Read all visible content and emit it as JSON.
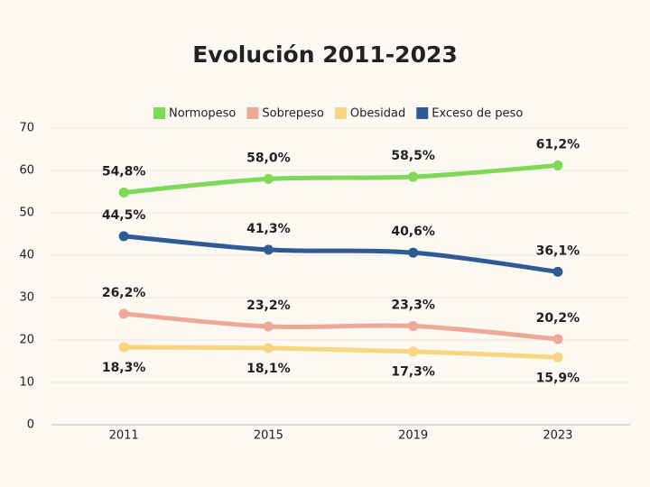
{
  "chart_data": {
    "type": "line",
    "title": "Evolución 2011-2023",
    "categories": [
      "2011",
      "2015",
      "2019",
      "2023"
    ],
    "series": [
      {
        "name": "Normopeso",
        "color": "#7ed957",
        "values": [
          54.8,
          58.0,
          58.5,
          61.2
        ],
        "value_labels": [
          "54,8%",
          "58,0%",
          "58,5%",
          "61,2%"
        ]
      },
      {
        "name": "Sobrepeso",
        "color": "#eea898",
        "values": [
          26.2,
          23.2,
          23.3,
          20.2
        ],
        "value_labels": [
          "26,2%",
          "23,2%",
          "23,3%",
          "20,2%"
        ]
      },
      {
        "name": "Obesidad",
        "color": "#f8d67f",
        "values": [
          18.3,
          18.1,
          17.3,
          15.9
        ],
        "value_labels": [
          "18,3%",
          "18,1%",
          "17,3%",
          "15,9%"
        ]
      },
      {
        "name": "Exceso de peso",
        "color": "#2e5b96",
        "values": [
          44.5,
          41.3,
          40.6,
          36.1
        ],
        "value_labels": [
          "44,5%",
          "41,3%",
          "40,6%",
          "36,1%"
        ]
      }
    ],
    "ylim": [
      0,
      70
    ],
    "yticks": [
      0,
      10,
      20,
      30,
      40,
      50,
      60,
      70
    ],
    "grid": true,
    "legend": "top"
  }
}
